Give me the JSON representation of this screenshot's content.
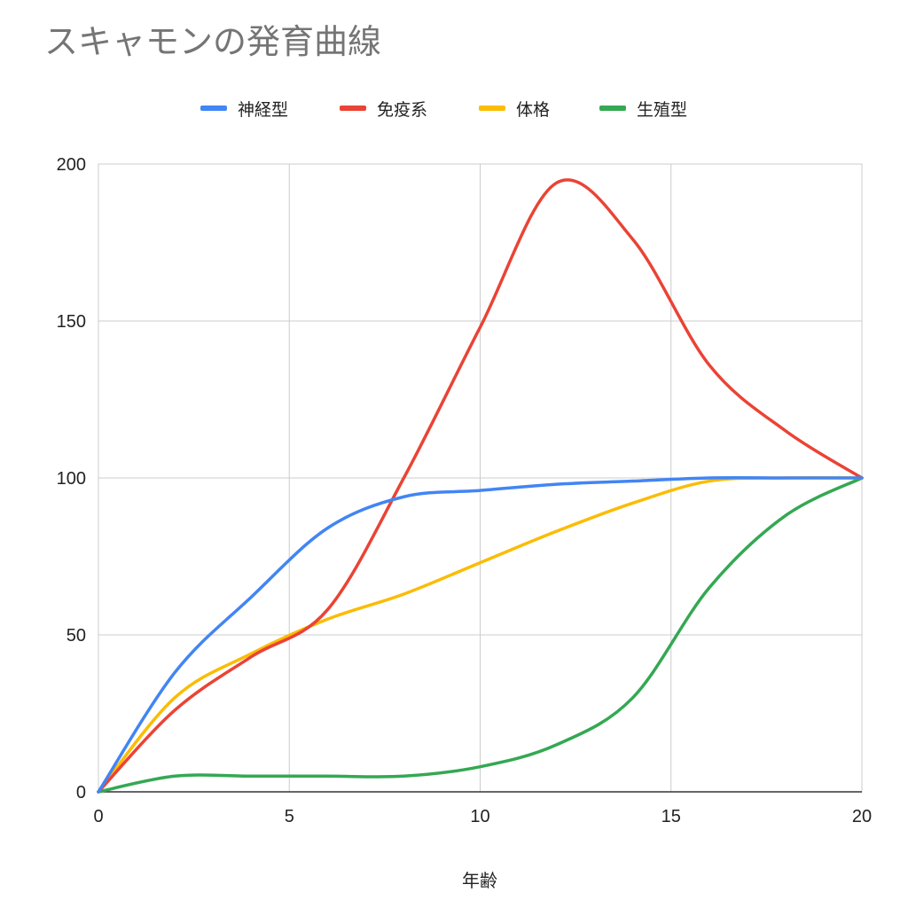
{
  "chart_data": {
    "type": "line",
    "title": "スキャモンの発育曲線",
    "xlabel": "年齢",
    "ylabel": "",
    "xlim": [
      0,
      20
    ],
    "ylim": [
      0,
      200
    ],
    "x_ticks": [
      0,
      5,
      10,
      15,
      20
    ],
    "y_ticks": [
      0,
      50,
      100,
      150,
      200
    ],
    "grid": true,
    "legend_position": "top",
    "series": [
      {
        "name": "神経型",
        "color": "#4285F4",
        "points": [
          [
            0,
            0
          ],
          [
            2,
            38
          ],
          [
            4,
            62
          ],
          [
            6,
            84
          ],
          [
            8,
            94
          ],
          [
            10,
            96
          ],
          [
            12,
            98
          ],
          [
            14,
            99
          ],
          [
            16,
            100
          ],
          [
            18,
            100
          ],
          [
            20,
            100
          ]
        ]
      },
      {
        "name": "免疫系",
        "color": "#EA4335",
        "points": [
          [
            0,
            0
          ],
          [
            2,
            26
          ],
          [
            4,
            43
          ],
          [
            6,
            58
          ],
          [
            8,
            100
          ],
          [
            10,
            148
          ],
          [
            12,
            194
          ],
          [
            14,
            176
          ],
          [
            16,
            136
          ],
          [
            18,
            115
          ],
          [
            20,
            100
          ]
        ]
      },
      {
        "name": "体格",
        "color": "#FBBC04",
        "points": [
          [
            0,
            0
          ],
          [
            2,
            30
          ],
          [
            4,
            44
          ],
          [
            6,
            55
          ],
          [
            8,
            63
          ],
          [
            10,
            73
          ],
          [
            12,
            83
          ],
          [
            14,
            92
          ],
          [
            16,
            99
          ],
          [
            18,
            100
          ],
          [
            20,
            100
          ]
        ]
      },
      {
        "name": "生殖型",
        "color": "#34A853",
        "points": [
          [
            0,
            0
          ],
          [
            2,
            5
          ],
          [
            4,
            5
          ],
          [
            6,
            5
          ],
          [
            8,
            5
          ],
          [
            10,
            8
          ],
          [
            12,
            15
          ],
          [
            14,
            30
          ],
          [
            16,
            65
          ],
          [
            18,
            88
          ],
          [
            20,
            100
          ]
        ]
      }
    ]
  }
}
